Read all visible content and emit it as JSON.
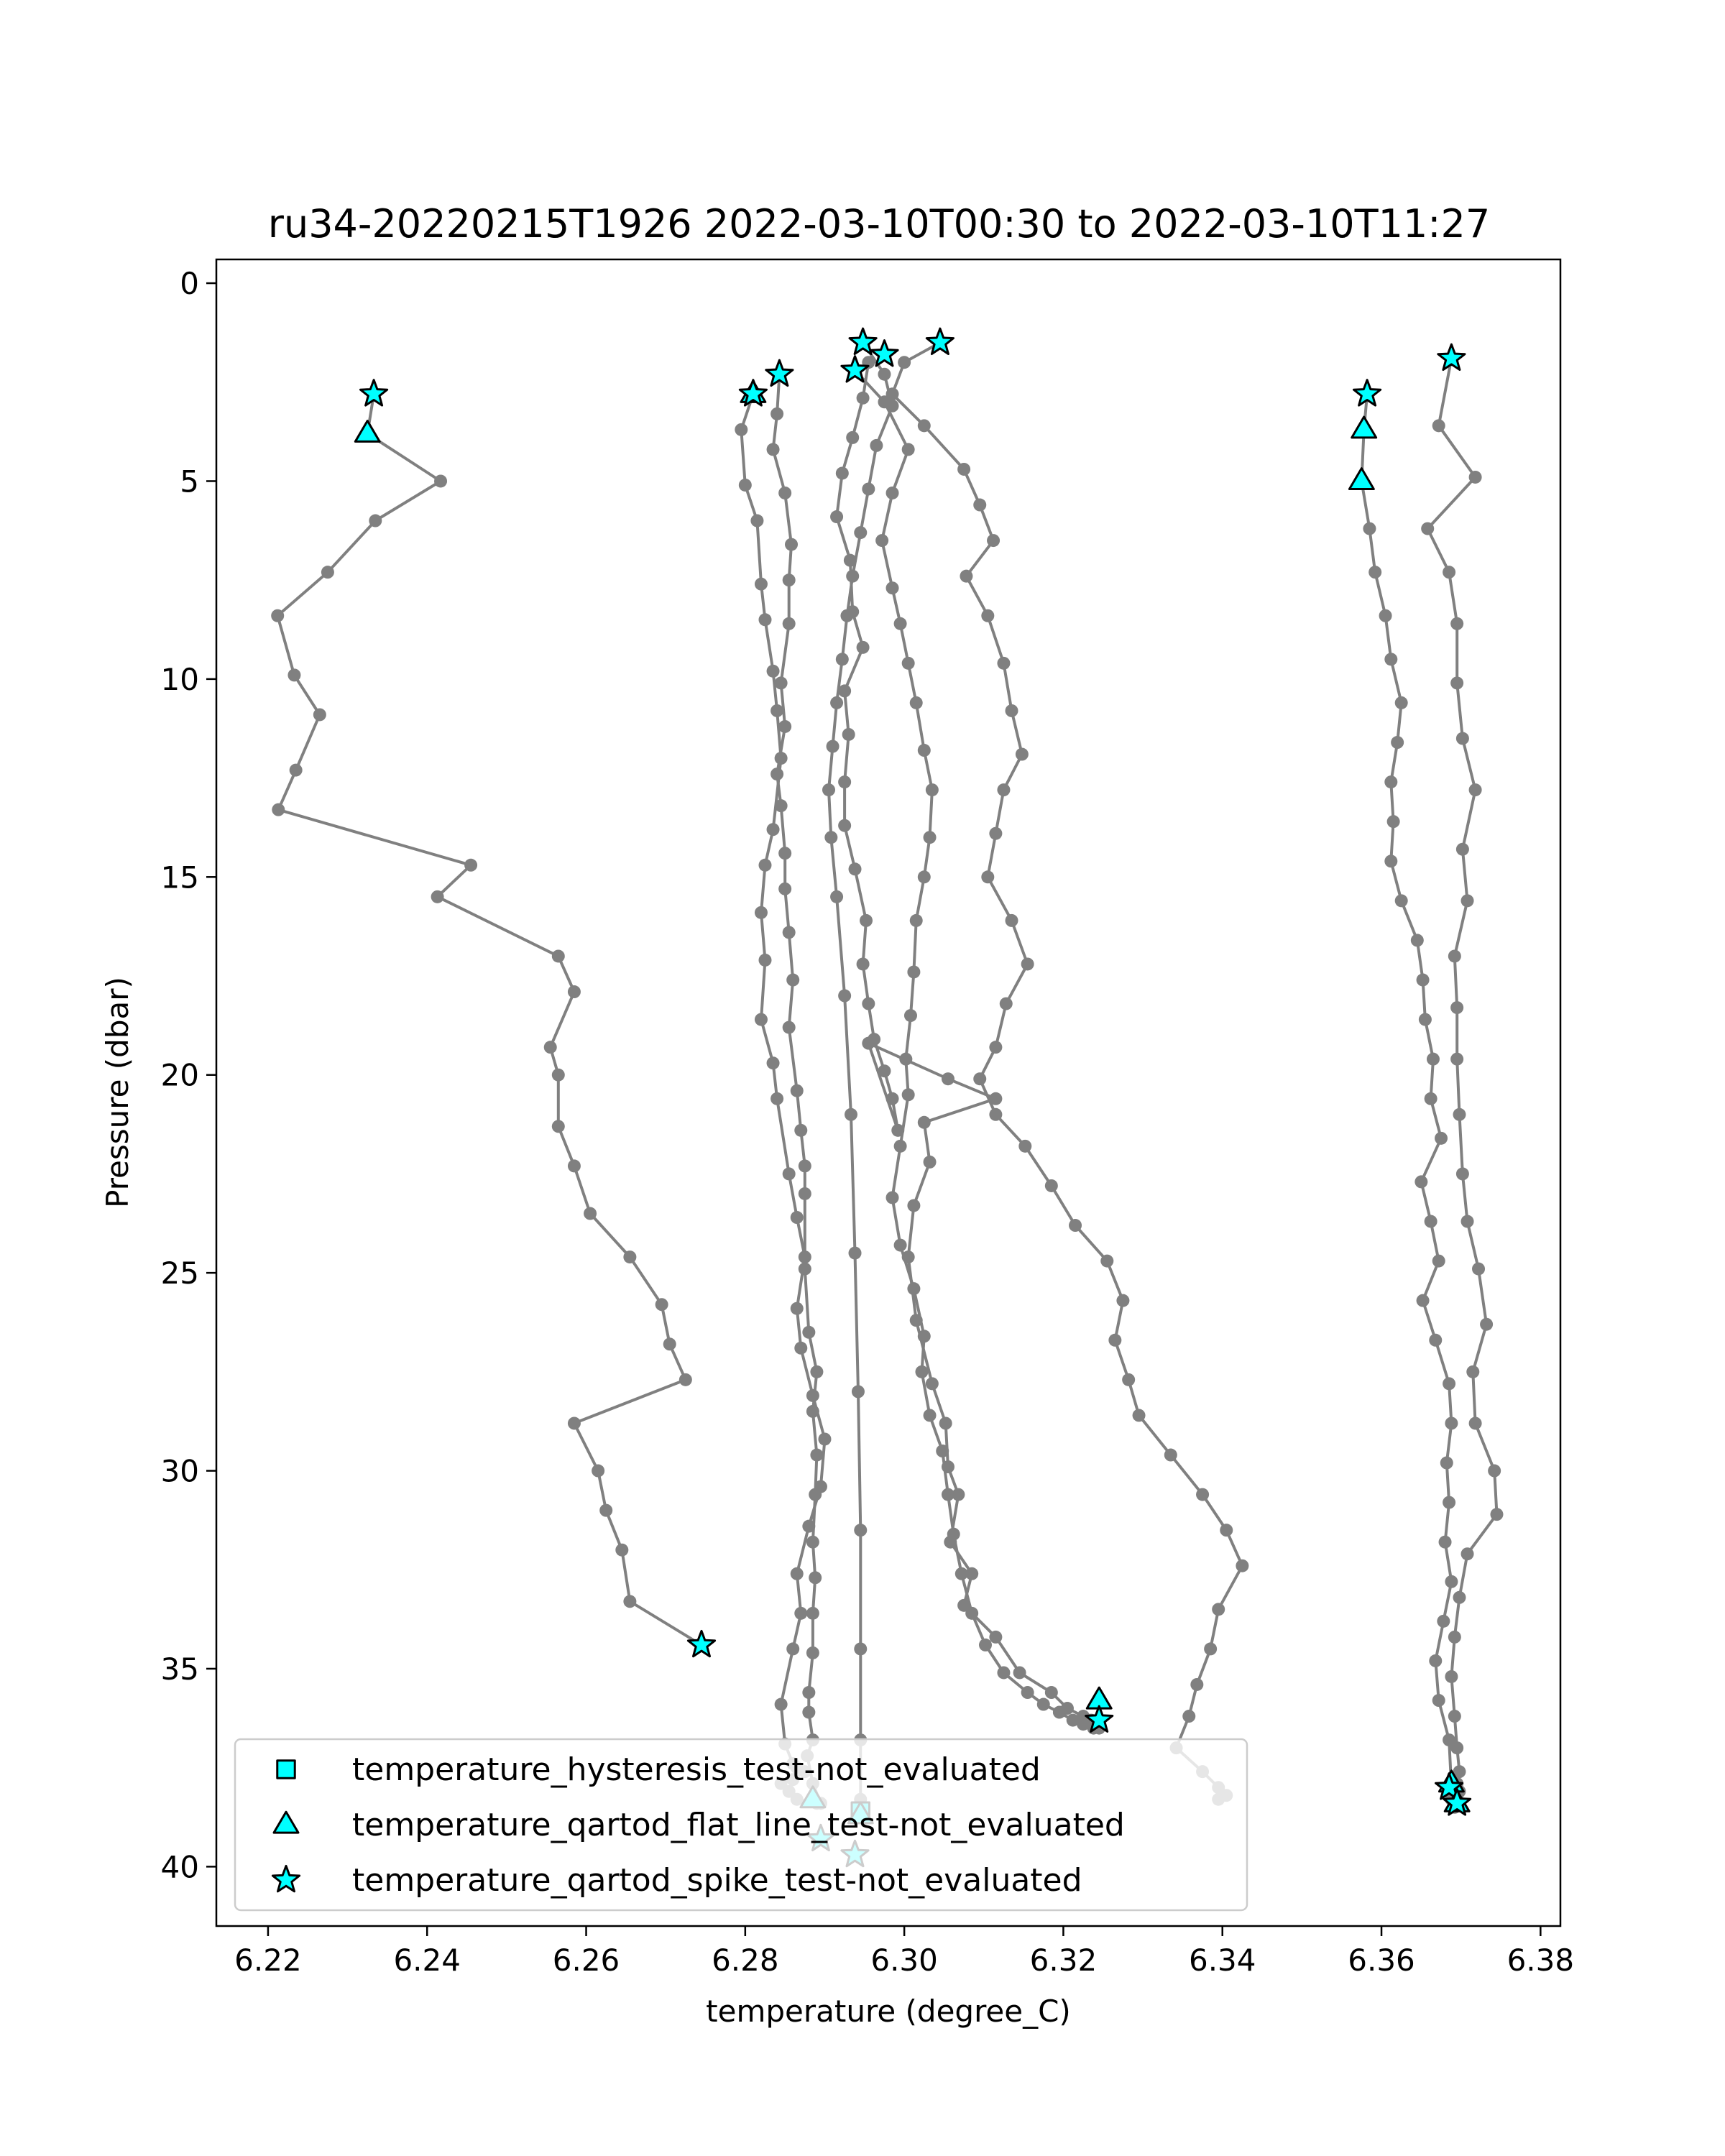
{
  "chart_data": {
    "type": "line",
    "title": "ru34-20220215T1926 2022-03-10T00:30 to 2022-03-10T11:27",
    "xlabel": "temperature (degree_C)",
    "ylabel": "Pressure (dbar)",
    "xlim": [
      6.2135,
      6.3825
    ],
    "ylim": [
      41.5,
      -0.6
    ],
    "y_inverted": true,
    "xticks": [
      "6.22",
      "6.24",
      "6.26",
      "6.28",
      "6.30",
      "6.32",
      "6.34",
      "6.36",
      "6.38"
    ],
    "yticks": [
      "0",
      "5",
      "10",
      "15",
      "20",
      "25",
      "30",
      "35",
      "40"
    ],
    "grid": false,
    "legend_position": "lower-left",
    "line_color": "#808080",
    "marker_color": "#00ffff",
    "series": [
      {
        "x": [
          6.2333,
          6.2325,
          6.2417,
          6.2335,
          6.2275,
          6.2212,
          6.2233,
          6.2265,
          6.2235,
          6.2213,
          6.2455,
          6.2413,
          6.2565,
          6.2585,
          6.2555,
          6.2565,
          6.2565,
          6.2585,
          6.2605,
          6.2655,
          6.2695,
          6.2705,
          6.2725,
          6.2585,
          6.2615,
          6.2625,
          6.2645,
          6.2655,
          6.2745
        ],
        "y": [
          2.8,
          3.8,
          5.0,
          6.0,
          7.3,
          8.4,
          9.9,
          10.9,
          12.3,
          13.3,
          14.7,
          15.5,
          17.0,
          17.9,
          19.3,
          20.0,
          21.3,
          22.3,
          23.5,
          24.6,
          25.8,
          26.8,
          27.7,
          28.8,
          30.0,
          31.0,
          32.0,
          33.3,
          34.4
        ]
      },
      {
        "x": [
          6.281,
          6.2795,
          6.28,
          6.2815,
          6.282,
          6.2825,
          6.2835,
          6.284,
          6.2845,
          6.2835,
          6.2825,
          6.282,
          6.2825,
          6.282,
          6.2835,
          6.284,
          6.2855,
          6.2865,
          6.2875,
          6.2865,
          6.287,
          6.2885,
          6.29,
          6.2895,
          6.288,
          6.2865,
          6.287,
          6.286,
          6.2845,
          6.285,
          6.286,
          6.2865,
          6.2875,
          6.286,
          6.2845,
          6.2855,
          6.2865,
          6.289
        ],
        "y": [
          2.8,
          3.7,
          5.1,
          6.0,
          7.6,
          8.5,
          9.8,
          10.8,
          12.0,
          13.8,
          14.7,
          15.9,
          17.1,
          18.6,
          19.7,
          20.6,
          22.5,
          23.6,
          24.6,
          25.9,
          26.9,
          28.1,
          29.2,
          30.4,
          31.4,
          32.6,
          33.6,
          34.5,
          35.9,
          36.9,
          37.4,
          37.5,
          37.6,
          37.8,
          37.9,
          38.1,
          38.3,
          38.4
        ]
      },
      {
        "x": [
          6.2843,
          6.284,
          6.2835,
          6.285,
          6.2858,
          6.2855,
          6.2855,
          6.2845,
          6.285,
          6.284,
          6.2845,
          6.285,
          6.285,
          6.2855,
          6.286,
          6.2855,
          6.2865,
          6.287,
          6.2875,
          6.2875,
          6.2875,
          6.288,
          6.289,
          6.2885,
          6.289,
          6.2888,
          6.2885,
          6.2888,
          6.2885,
          6.2885,
          6.288,
          6.288,
          6.2885,
          6.2878,
          6.2885,
          6.2895
        ],
        "y": [
          2.3,
          3.3,
          4.2,
          5.3,
          6.6,
          7.5,
          8.6,
          10.1,
          11.2,
          12.4,
          13.2,
          14.4,
          15.3,
          16.4,
          17.6,
          18.8,
          20.4,
          21.4,
          22.3,
          23.0,
          24.9,
          26.5,
          27.5,
          28.5,
          29.6,
          30.6,
          31.8,
          32.7,
          33.6,
          34.6,
          35.6,
          36.1,
          36.8,
          37.2,
          37.9,
          38.4
        ]
      },
      {
        "x": [
          6.2948,
          6.2975,
          6.2985,
          6.2965,
          6.2955,
          6.2945,
          6.2935,
          6.2928,
          6.2922,
          6.2915,
          6.291,
          6.2905,
          6.2908,
          6.2915,
          6.2925,
          6.2933,
          6.2938,
          6.2942,
          6.2945,
          6.2945,
          6.2945,
          6.2945,
          6.2945
        ],
        "y": [
          1.5,
          2.3,
          3.1,
          4.1,
          5.2,
          6.3,
          7.4,
          8.4,
          9.5,
          10.6,
          11.7,
          12.8,
          14.0,
          15.5,
          18.0,
          21.0,
          24.5,
          28.0,
          31.5,
          34.5,
          36.8,
          38.3,
          38.6
        ]
      },
      {
        "x": [
          6.2955,
          6.2948,
          6.2935,
          6.2922,
          6.2915,
          6.2932,
          6.2935,
          6.2948,
          6.2925,
          6.293,
          6.2925,
          6.2925,
          6.2938,
          6.2952,
          6.2948,
          6.2955,
          6.2962,
          6.2975,
          6.2985,
          6.2992,
          6.2955,
          6.3055,
          6.3115,
          6.3025,
          6.3032,
          6.3012,
          6.3005,
          6.3015,
          6.3035,
          6.3052,
          6.3055,
          6.3068,
          6.3058,
          6.3085,
          6.3075,
          6.3115,
          6.3145,
          6.3185,
          6.3205,
          6.3225,
          6.3235,
          6.3245
        ],
        "y": [
          2.0,
          2.9,
          3.9,
          4.8,
          5.9,
          7.0,
          8.3,
          9.2,
          10.3,
          11.4,
          12.6,
          13.7,
          14.8,
          16.1,
          17.2,
          18.2,
          19.1,
          19.9,
          20.6,
          21.4,
          19.2,
          20.1,
          20.6,
          21.2,
          22.2,
          23.3,
          24.6,
          26.2,
          27.8,
          28.8,
          29.9,
          30.6,
          31.8,
          32.6,
          33.4,
          34.2,
          35.1,
          35.6,
          36.0,
          36.2,
          36.3,
          36.5
        ]
      },
      {
        "x": [
          6.2938,
          6.2975,
          6.3005,
          6.2985,
          6.2972,
          6.2985,
          6.2995,
          6.3005,
          6.3015,
          6.3025,
          6.3035,
          6.3032,
          6.3025,
          6.3015,
          6.3012,
          6.3008,
          6.3002,
          6.3005,
          6.2995,
          6.2985,
          6.2995,
          6.3012,
          6.3025,
          6.3022,
          6.3032,
          6.3048,
          6.3055,
          6.3062,
          6.3072,
          6.3085,
          6.3102,
          6.3125,
          6.3155,
          6.3175,
          6.3195,
          6.3212,
          6.3225,
          6.3238
        ],
        "y": [
          2.2,
          3.0,
          4.2,
          5.3,
          6.5,
          7.7,
          8.6,
          9.6,
          10.6,
          11.8,
          12.8,
          14.0,
          15.0,
          16.1,
          17.4,
          18.5,
          19.6,
          20.5,
          21.8,
          23.1,
          24.3,
          25.4,
          26.6,
          27.5,
          28.6,
          29.5,
          30.6,
          31.6,
          32.6,
          33.6,
          34.4,
          35.1,
          35.6,
          35.9,
          36.1,
          36.3,
          36.4,
          36.5
        ]
      },
      {
        "x": [
          6.3045,
          6.3,
          6.2985,
          6.3025,
          6.3075,
          6.3095,
          6.3112,
          6.3078,
          6.3105,
          6.3125,
          6.3135,
          6.3148,
          6.3125,
          6.3115,
          6.3105,
          6.3135,
          6.3155,
          6.3128,
          6.3115,
          6.3095,
          6.3115,
          6.3152,
          6.3185,
          6.3215,
          6.3255,
          6.3275,
          6.3265,
          6.3282,
          6.3295,
          6.3335,
          6.3375,
          6.3405,
          6.3425,
          6.3395,
          6.3385,
          6.3368,
          6.3358,
          6.3342,
          6.3375,
          6.3395,
          6.3405,
          6.3395
        ],
        "y": [
          1.5,
          2.0,
          2.8,
          3.6,
          4.7,
          5.6,
          6.5,
          7.4,
          8.4,
          9.6,
          10.8,
          11.9,
          12.8,
          13.9,
          15.0,
          16.1,
          17.2,
          18.2,
          19.3,
          20.1,
          21.0,
          21.8,
          22.8,
          23.8,
          24.7,
          25.7,
          26.7,
          27.7,
          28.6,
          29.6,
          30.6,
          31.5,
          32.4,
          33.5,
          34.5,
          35.4,
          36.2,
          37.0,
          37.6,
          38.0,
          38.2,
          38.3
        ]
      },
      {
        "x": [
          6.3582,
          6.3578,
          6.3575,
          6.3585,
          6.3592,
          6.3605,
          6.3612,
          6.3625,
          6.362,
          6.3612,
          6.3615,
          6.3612,
          6.3625,
          6.3645,
          6.3652,
          6.3655,
          6.3665,
          6.3662,
          6.3675,
          6.365,
          6.3662,
          6.3672,
          6.3652,
          6.3668,
          6.3685,
          6.3688,
          6.3682,
          6.3685,
          6.368,
          6.3688,
          6.3678,
          6.3668,
          6.3672,
          6.3685,
          6.3688
        ],
        "y": [
          2.8,
          3.7,
          5.0,
          6.2,
          7.3,
          8.4,
          9.5,
          10.6,
          11.6,
          12.6,
          13.6,
          14.6,
          15.6,
          16.6,
          17.6,
          18.6,
          19.6,
          20.6,
          21.6,
          22.7,
          23.7,
          24.7,
          25.7,
          26.7,
          27.8,
          28.8,
          29.8,
          30.8,
          31.8,
          32.8,
          33.8,
          34.8,
          35.8,
          36.8,
          38.0
        ]
      },
      {
        "x": [
          6.3688,
          6.3672,
          6.3718,
          6.3658,
          6.3685,
          6.3695,
          6.3695,
          6.3702,
          6.3718,
          6.3702,
          6.3708,
          6.3692,
          6.3695,
          6.3695,
          6.3698,
          6.3702,
          6.3708,
          6.3722,
          6.3732,
          6.3715,
          6.3718,
          6.3742,
          6.3745,
          6.3708,
          6.3698,
          6.3692,
          6.3688,
          6.3692,
          6.3695,
          6.3698,
          6.3695,
          6.3698,
          6.3695,
          6.3688,
          6.3692
        ],
        "y": [
          1.9,
          3.6,
          4.9,
          6.2,
          7.3,
          8.6,
          10.1,
          11.5,
          12.8,
          14.3,
          15.6,
          17.0,
          18.3,
          19.6,
          21.0,
          22.5,
          23.7,
          24.9,
          26.3,
          27.5,
          28.8,
          30.0,
          31.1,
          32.1,
          33.2,
          34.2,
          35.2,
          36.2,
          37.0,
          37.6,
          37.9,
          38.1,
          38.2,
          38.3,
          38.5
        ]
      }
    ],
    "markers": {
      "hysteresis": {
        "x": [
          6.2945
        ],
        "y": [
          38.6
        ]
      },
      "flat_line": {
        "x": [
          6.2325,
          6.281,
          6.2885,
          6.2945,
          6.3245,
          6.3578,
          6.3575,
          6.3688,
          6.3695
        ],
        "y": [
          3.8,
          2.8,
          38.3,
          38.7,
          35.8,
          3.7,
          5.0,
          37.9,
          38.4
        ]
      },
      "spike": {
        "x": [
          6.2333,
          6.2745,
          6.281,
          6.2843,
          6.2938,
          6.2948,
          6.2975,
          6.3045,
          6.2895,
          6.2938,
          6.3245,
          6.3582,
          6.3688,
          6.3685,
          6.3695
        ],
        "y": [
          2.8,
          34.4,
          2.8,
          2.3,
          2.2,
          1.5,
          1.8,
          1.5,
          39.3,
          39.7,
          36.3,
          2.8,
          1.9,
          38.0,
          38.4
        ]
      }
    },
    "legend": [
      {
        "key": "hysteresis",
        "marker": "square",
        "label": "temperature_hysteresis_test-not_evaluated"
      },
      {
        "key": "flat_line",
        "marker": "triangle",
        "label": "temperature_qartod_flat_line_test-not_evaluated"
      },
      {
        "key": "spike",
        "marker": "star",
        "label": "temperature_qartod_spike_test-not_evaluated"
      }
    ]
  }
}
